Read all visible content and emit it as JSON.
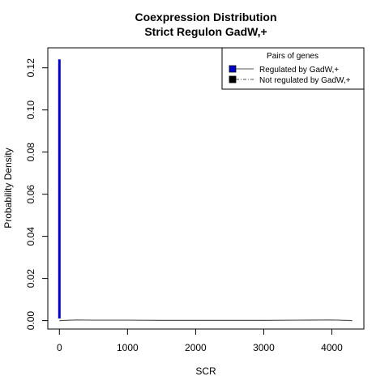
{
  "chart_data": {
    "type": "line",
    "title": "Coexpression Distribution",
    "subtitle": "Strict Regulon GadW,+",
    "xlabel": "SCR",
    "ylabel": "Probability Density",
    "xlim": [
      -170,
      4470
    ],
    "ylim": [
      -0.004,
      0.1295
    ],
    "xticks": [
      0,
      1000,
      2000,
      3000,
      4000
    ],
    "xtick_labels": [
      "0",
      "1000",
      "2000",
      "3000",
      "4000"
    ],
    "yticks": [
      0.0,
      0.02,
      0.04,
      0.06,
      0.08,
      0.1,
      0.12
    ],
    "ytick_labels": [
      "0.00",
      "0.02",
      "0.04",
      "0.06",
      "0.08",
      "0.10",
      "0.12"
    ],
    "grid": false,
    "legend": {
      "position": "top-right",
      "title": "Pairs of genes",
      "entries": [
        {
          "label": "Regulated by  GadW,+",
          "color": "#0000cc",
          "line": "solid"
        },
        {
          "label": "Not regulated by  GadW,+",
          "color": "#000000",
          "line": "dashed"
        }
      ]
    },
    "series": [
      {
        "name": "Regulated by  GadW,+",
        "color": "#0000cc",
        "x": [
          0,
          0,
          0
        ],
        "y": [
          0.001,
          0.124,
          0.001
        ]
      },
      {
        "name": "Not regulated by  GadW,+",
        "color": "#555555",
        "x": [
          0,
          250,
          500,
          1000,
          1500,
          2000,
          2500,
          3000,
          3500,
          4000,
          4300
        ],
        "y": [
          0.0,
          0.0003,
          0.0002,
          0.0002,
          0.0001,
          0.0001,
          0.0001,
          0.0001,
          0.0002,
          0.0003,
          0.0
        ]
      }
    ]
  }
}
